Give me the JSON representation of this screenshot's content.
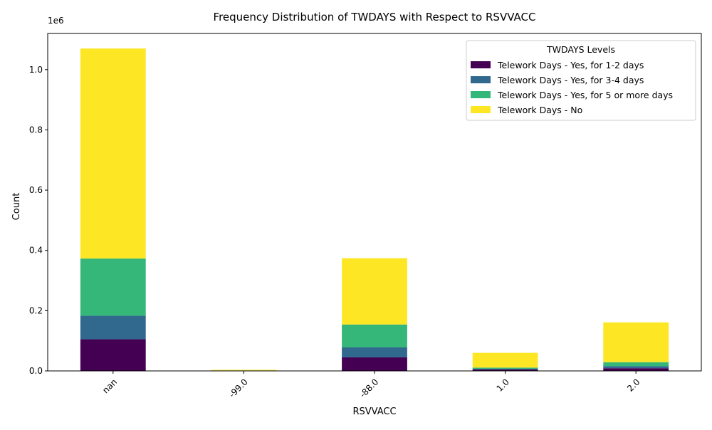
{
  "chart_data": {
    "type": "bar",
    "stacked": true,
    "title": "Frequency Distribution of TWDAYS with Respect to RSVVACC",
    "xlabel": "RSVVACC",
    "ylabel": "Count",
    "y_offset_label": "1e6",
    "ylim": [
      0,
      1120000
    ],
    "yticks": [
      0,
      200000,
      400000,
      600000,
      800000,
      1000000
    ],
    "ytick_labels": [
      "0.0",
      "0.2",
      "0.4",
      "0.6",
      "0.8",
      "1.0"
    ],
    "categories": [
      "nan",
      "-99.0",
      "-88.0",
      "1.0",
      "2.0"
    ],
    "legend_title": "TWDAYS Levels",
    "legend_position": "top-right",
    "grid": false,
    "series": [
      {
        "name": "Telework Days - Yes, for 1-2 days",
        "color": "#440154",
        "values": [
          105000,
          500,
          45000,
          5000,
          9000
        ]
      },
      {
        "name": "Telework Days - Yes, for 3-4 days",
        "color": "#31688e",
        "values": [
          78000,
          300,
          33000,
          2000,
          7000
        ]
      },
      {
        "name": "Telework Days - Yes, for 5 or more days",
        "color": "#35b779",
        "values": [
          190000,
          700,
          76000,
          4000,
          13000
        ]
      },
      {
        "name": "Telework Days - No",
        "color": "#fde725",
        "values": [
          697000,
          2000,
          220000,
          49000,
          132000
        ]
      }
    ]
  }
}
